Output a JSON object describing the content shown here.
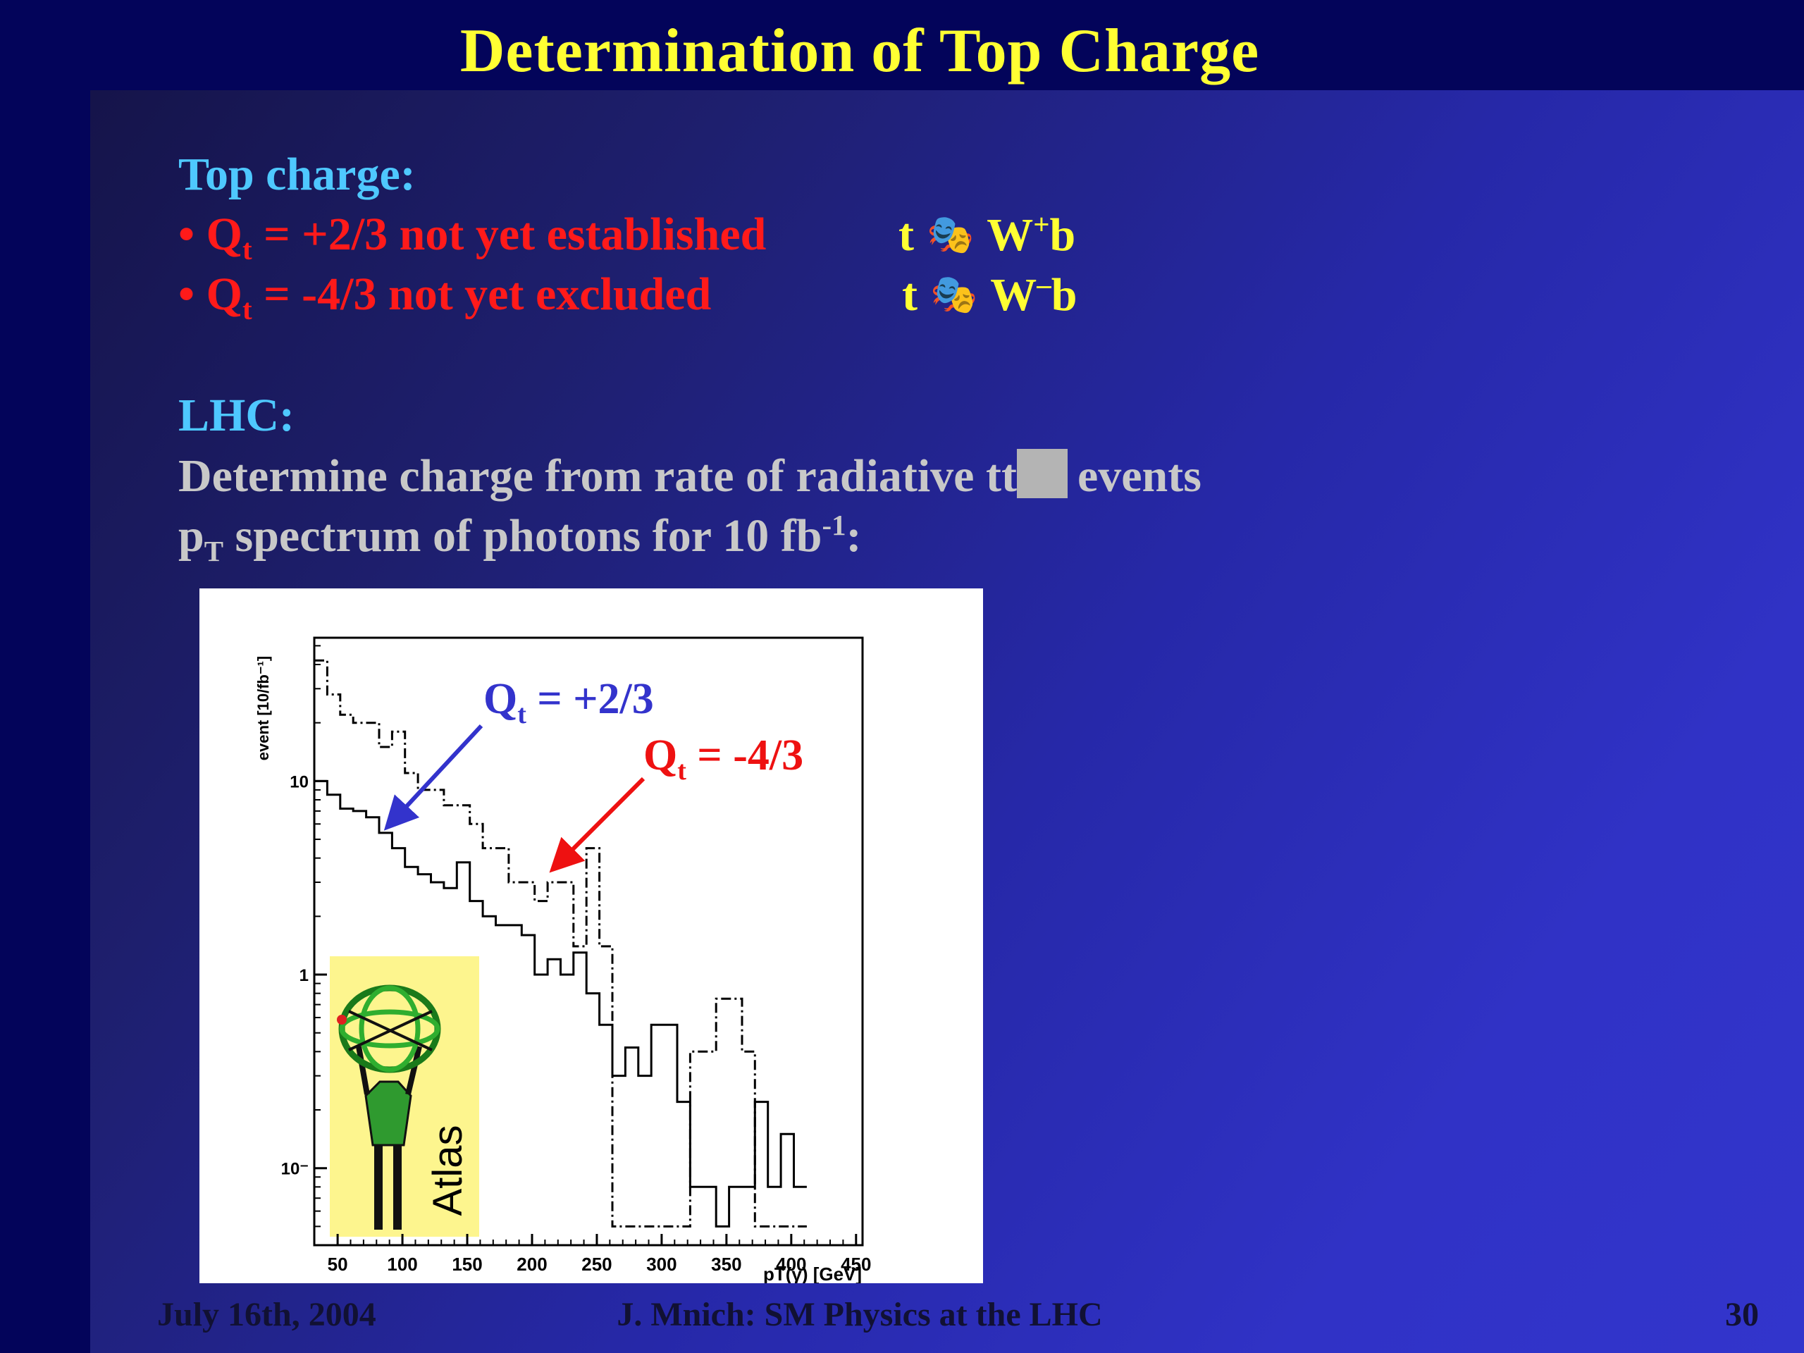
{
  "slide": {
    "title": "Determination of Top Charge",
    "heading1": "Top charge:",
    "bullet1": {
      "prefix": "• Q",
      "sub": "t",
      "text": " = +2/3 not yet established",
      "decay_t": "t",
      "decay_w": "W",
      "decay_sign": "+",
      "decay_b": "b"
    },
    "bullet2": {
      "prefix": "• Q",
      "sub": "t",
      "text": " = -4/3  not yet excluded",
      "decay_t": "t",
      "decay_w": "W",
      "decay_sign": "–",
      "decay_b": "b"
    },
    "heading2": "LHC:",
    "line1_a": "Determine charge from rate of radiative tt",
    "line1_b": "events",
    "line2_p": "p",
    "line2_sub": "T",
    "line2_text": " spectrum of photons for 10 fb",
    "line2_sup": "-1",
    "line2_end": ":",
    "footer_date": "July 16th, 2004",
    "footer_center": "J. Mnich: SM Physics at the LHC",
    "footer_page": "30",
    "colors": {
      "title": "#ffff33",
      "heading": "#4ec8ff",
      "bullet": "#ff1a1a",
      "text": "#c8c8c8"
    }
  },
  "chart_data": {
    "type": "line",
    "ylabel": "event [10/fb⁻¹]",
    "xlabel": "pT(γ) [GeV]",
    "xlim": [
      32,
      455
    ],
    "ylim": [
      0.04,
      55
    ],
    "yscale": "log",
    "x_ticks": [
      "50",
      "100",
      "150",
      "200",
      "250",
      "300",
      "350",
      "400",
      "450"
    ],
    "y_ticks": [
      {
        "value": 10,
        "label": "10"
      },
      {
        "value": 1,
        "label": "1"
      },
      {
        "value": 0.1,
        "label": "10⁻"
      }
    ],
    "annotations": [
      {
        "text": "Q",
        "sub": "t",
        "rest": " = +2/3",
        "color": "#3333cc"
      },
      {
        "text": "Q",
        "sub": "t",
        "rest": " = -4/3",
        "color": "#ee1111"
      }
    ],
    "inset_label": "Atlas",
    "series": [
      {
        "style": "dash-dot",
        "x": [
          32,
          42,
          52,
          62,
          72,
          82,
          92,
          102,
          112,
          122,
          132,
          142,
          152,
          162,
          172,
          182,
          192,
          202,
          212,
          222,
          232,
          242,
          252,
          262,
          272,
          282,
          292,
          302,
          312,
          322,
          332,
          342,
          352,
          362,
          372,
          382,
          392,
          402
        ],
        "values": [
          42,
          28,
          22,
          20,
          20,
          15,
          18,
          11,
          9,
          9,
          7.5,
          7.5,
          6,
          4.5,
          4.5,
          3,
          3,
          2.4,
          3,
          3,
          1.4,
          4.5,
          1.4,
          0.05,
          0.05,
          0.05,
          0.05,
          0.05,
          0.05,
          0.4,
          0.4,
          0.75,
          0.75,
          0.4,
          0.05,
          0.05,
          0.05,
          0.05
        ]
      },
      {
        "style": "solid",
        "x": [
          32,
          42,
          52,
          62,
          72,
          82,
          92,
          102,
          112,
          122,
          132,
          142,
          152,
          162,
          172,
          182,
          192,
          202,
          212,
          222,
          232,
          242,
          252,
          262,
          272,
          282,
          292,
          302,
          312,
          322,
          332,
          342,
          352,
          362,
          372,
          382,
          392,
          402
        ],
        "values": [
          10,
          8.5,
          7.2,
          7,
          6.5,
          5.4,
          4.5,
          3.6,
          3.3,
          3,
          2.8,
          3.8,
          2.4,
          2,
          1.8,
          1.8,
          1.6,
          1,
          1.2,
          1,
          1.3,
          0.8,
          0.55,
          0.3,
          0.42,
          0.3,
          0.55,
          0.55,
          0.22,
          0.08,
          0.08,
          0.05,
          0.08,
          0.08,
          0.22,
          0.08,
          0.15,
          0.08
        ]
      }
    ]
  }
}
